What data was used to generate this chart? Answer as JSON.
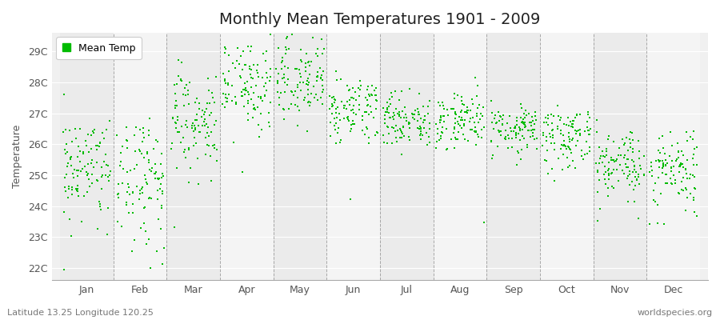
{
  "title": "Monthly Mean Temperatures 1901 - 2009",
  "ylabel": "Temperature",
  "xlabel": "",
  "ytick_labels": [
    "22C",
    "23C",
    "24C",
    "25C",
    "26C",
    "27C",
    "28C",
    "29C"
  ],
  "ytick_values": [
    22,
    23,
    24,
    25,
    26,
    27,
    28,
    29
  ],
  "ylim": [
    21.6,
    29.6
  ],
  "months": [
    "Jan",
    "Feb",
    "Mar",
    "Apr",
    "May",
    "Jun",
    "Jul",
    "Aug",
    "Sep",
    "Oct",
    "Nov",
    "Dec"
  ],
  "month_centers": [
    1,
    2,
    3,
    4,
    5,
    6,
    7,
    8,
    9,
    10,
    11,
    12
  ],
  "xlim": [
    0.35,
    12.65
  ],
  "dot_color": "#00BB00",
  "dot_size": 3,
  "background_color": "#FFFFFF",
  "plot_bg_color": "#EFEFEF",
  "plot_bg_alt": "#F8F8F8",
  "grid_color": "#888888",
  "legend_label": "Mean Temp",
  "footnote_left": "Latitude 13.25 Longitude 120.25",
  "footnote_right": "worldspecies.org",
  "n_years": 109,
  "seed": 42,
  "monthly_means": [
    25.3,
    25.0,
    26.8,
    27.8,
    28.1,
    27.1,
    26.8,
    26.7,
    26.5,
    26.3,
    25.3,
    25.2
  ],
  "monthly_stds": [
    0.85,
    0.9,
    0.75,
    0.7,
    0.6,
    0.55,
    0.45,
    0.45,
    0.4,
    0.45,
    0.55,
    0.65
  ],
  "monthly_low_bias": [
    1.2,
    1.3,
    0.3,
    0.1,
    0.1,
    0.2,
    0.1,
    0.1,
    0.1,
    0.1,
    0.3,
    0.5
  ],
  "title_fontsize": 14,
  "label_fontsize": 9,
  "tick_fontsize": 9,
  "footnote_fontsize": 8,
  "alternating_bg": [
    [
      1,
      "#EBEBEB"
    ],
    [
      2,
      "#F4F4F4"
    ],
    [
      3,
      "#EBEBEB"
    ],
    [
      4,
      "#F4F4F4"
    ],
    [
      5,
      "#EBEBEB"
    ],
    [
      6,
      "#F4F4F4"
    ],
    [
      7,
      "#EBEBEB"
    ],
    [
      8,
      "#F4F4F4"
    ],
    [
      9,
      "#EBEBEB"
    ],
    [
      10,
      "#F4F4F4"
    ],
    [
      11,
      "#EBEBEB"
    ],
    [
      12,
      "#F4F4F4"
    ]
  ]
}
